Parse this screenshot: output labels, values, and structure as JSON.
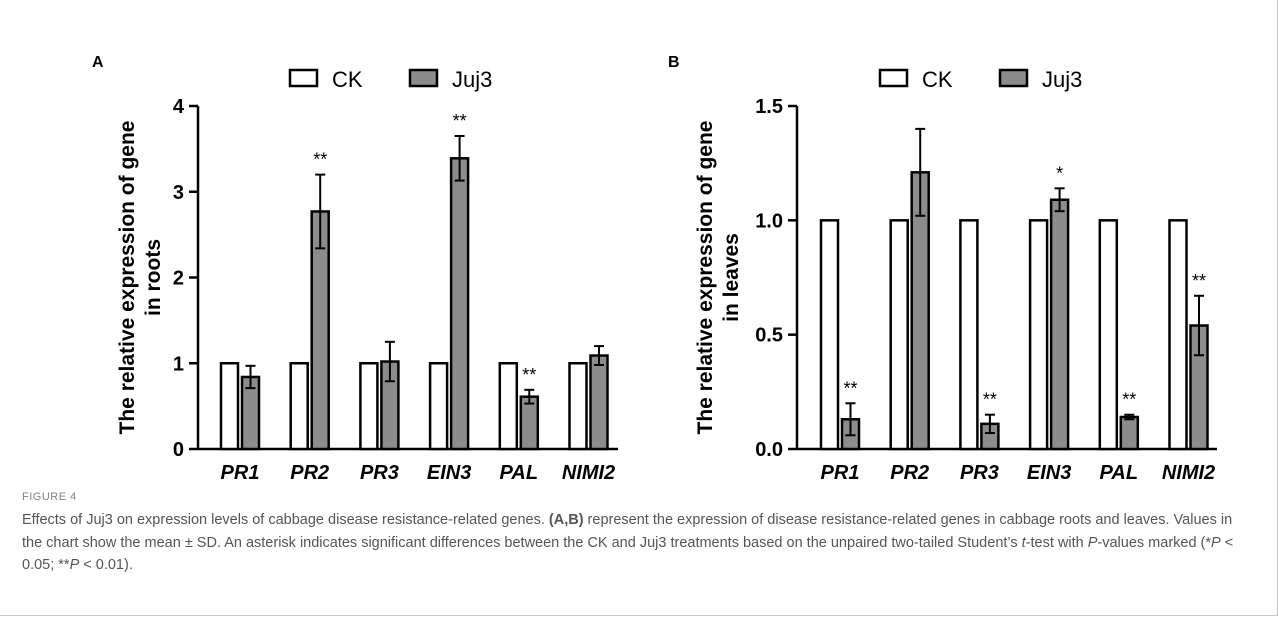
{
  "chart_data": [
    {
      "type": "bar",
      "panel": "A",
      "ylabel_line1": "The relative expression of gene",
      "ylabel_line2": "in roots",
      "categories": [
        "PR1",
        "PR2",
        "PR3",
        "EIN3",
        "PAL",
        "NIMI2"
      ],
      "ylim": [
        0,
        4
      ],
      "yticks": [
        "0",
        "1",
        "2",
        "3",
        "4"
      ],
      "ytick_values": [
        0,
        1,
        2,
        3,
        4
      ],
      "legend_position": "top",
      "series": [
        {
          "name": "CK",
          "values": [
            1,
            1,
            1,
            1,
            1,
            1
          ],
          "errors": [
            0,
            0,
            0,
            0,
            0,
            0
          ],
          "color": "#ffffff"
        },
        {
          "name": "Juj3",
          "values": [
            0.84,
            2.77,
            1.02,
            3.39,
            0.61,
            1.09
          ],
          "errors": [
            0.13,
            0.43,
            0.23,
            0.26,
            0.08,
            0.11
          ],
          "color": "#8c8c8c"
        }
      ],
      "significance": [
        "",
        "**",
        "",
        "**",
        "**",
        ""
      ]
    },
    {
      "type": "bar",
      "panel": "B",
      "ylabel_line1": "The relative expression of gene",
      "ylabel_line2": "in leaves",
      "categories": [
        "PR1",
        "PR2",
        "PR3",
        "EIN3",
        "PAL",
        "NIMI2"
      ],
      "ylim": [
        0,
        1.5
      ],
      "yticks": [
        "0.0",
        "0.5",
        "1.0",
        "1.5"
      ],
      "ytick_values": [
        0,
        0.5,
        1.0,
        1.5
      ],
      "legend_position": "top",
      "series": [
        {
          "name": "CK",
          "values": [
            1,
            1,
            1,
            1,
            1,
            1
          ],
          "errors": [
            0,
            0,
            0,
            0,
            0,
            0
          ],
          "color": "#ffffff"
        },
        {
          "name": "Juj3",
          "values": [
            0.13,
            1.21,
            0.11,
            1.09,
            0.14,
            0.54
          ],
          "errors": [
            0.07,
            0.19,
            0.04,
            0.05,
            0.01,
            0.13
          ],
          "color": "#8c8c8c"
        }
      ],
      "significance": [
        "**",
        "",
        "**",
        "*",
        "**",
        "**"
      ]
    }
  ],
  "caption": {
    "label": "FIGURE 4",
    "text_1": "Effects of Juj3 on expression levels of cabbage disease resistance-related genes. ",
    "panels_ref": "(A,B)",
    "text_2": " represent the expression of disease resistance-related genes in cabbage roots and leaves. Values in the chart show the mean ± SD. An asterisk indicates significant differences between the CK and Juj3 treatments based on the unpaired two-tailed Student’s ",
    "t_italic": "t",
    "text_3": "-test with ",
    "p_italic": "P",
    "text_4": "-values marked (*",
    "p1_italic": "P",
    "text_5": " < 0.05; **",
    "p2_italic": "P",
    "text_6": " < 0.01)."
  }
}
